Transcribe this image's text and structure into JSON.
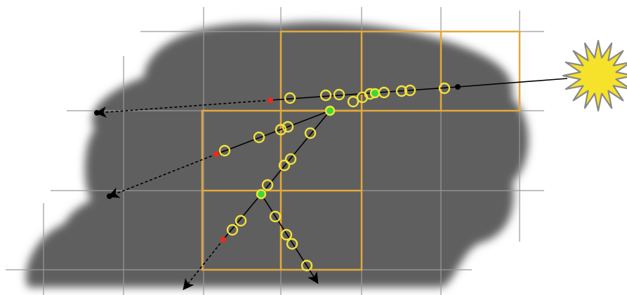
{
  "diagram": {
    "description_labels": [],
    "colors": {
      "background": "#ffffff",
      "cloud": "#5f5f5f",
      "grid": "#9a9a9a",
      "cells": "#e3a93a",
      "ray": "#000000",
      "sample": "#f2e23a",
      "scatter_event": "#38d83a",
      "termination": "#ee2a1a",
      "sun_fill": "#f6e22a",
      "sun_stroke": "#888888"
    },
    "icons": {
      "light_source": "sun-icon",
      "ray_end": "arrowhead-icon"
    }
  }
}
